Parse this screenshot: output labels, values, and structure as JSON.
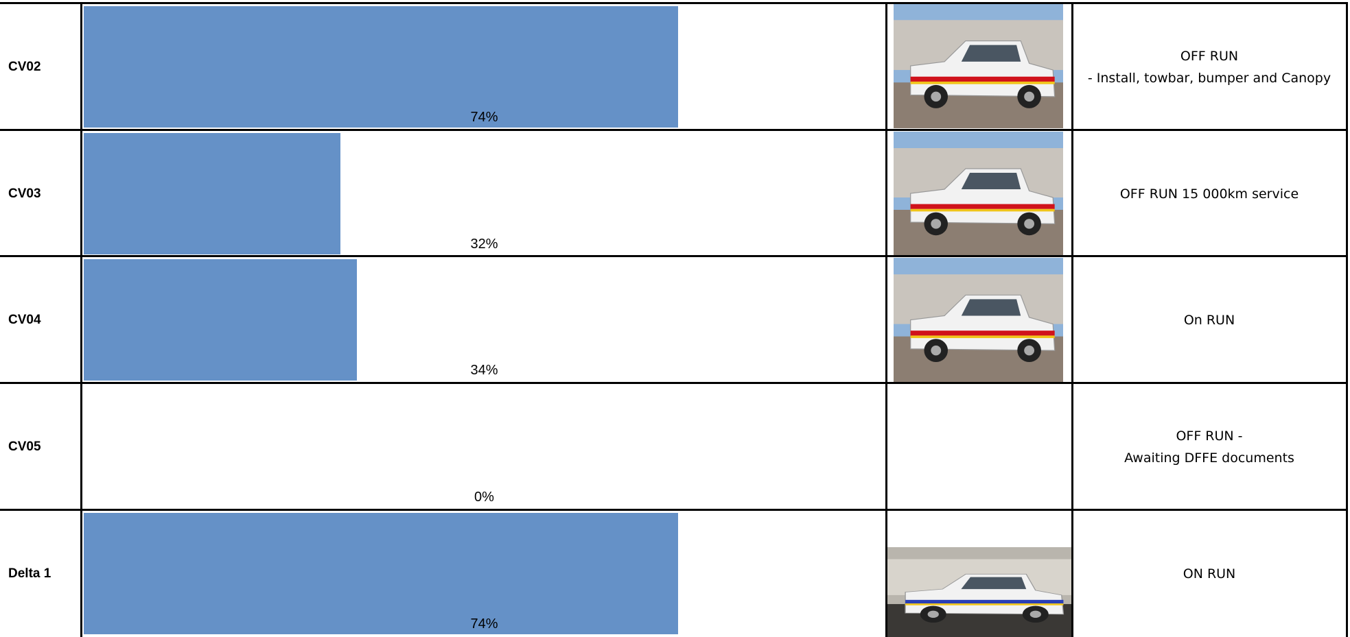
{
  "table": {
    "bar_range": [
      0,
      100
    ],
    "rows": [
      {
        "name": "CV02",
        "value": 74,
        "value_label": "74%",
        "status": [
          "OFF RUN",
          "- Install, towbar, bumper and Canopy"
        ]
      },
      {
        "name": "CV03",
        "value": 32,
        "value_label": "32%",
        "status": [
          "OFF RUN 15 000km service"
        ]
      },
      {
        "name": "CV04",
        "value": 34,
        "value_label": "34%",
        "status": [
          "On RUN"
        ]
      },
      {
        "name": "CV05",
        "value": 0,
        "value_label": "0%",
        "status": [
          "OFF RUN -",
          "Awaiting DFFE documents"
        ]
      },
      {
        "name": "Delta 1",
        "value": 74,
        "value_label": "74%",
        "status": [
          "ON RUN"
        ]
      }
    ]
  }
}
